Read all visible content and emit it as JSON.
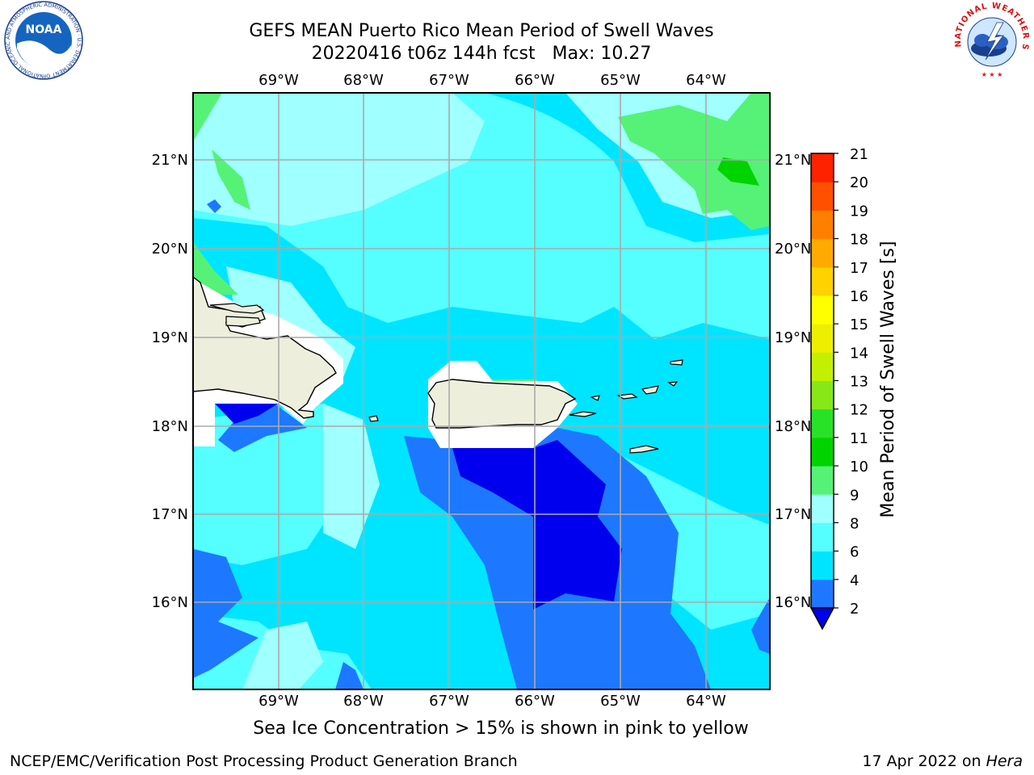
{
  "header": {
    "title_line1": "GEFS MEAN Puerto Rico Mean Period of Swell Waves",
    "title_line2": "20220416 t06z 144h fcst   Max: 10.27"
  },
  "logos": {
    "left": "NOAA",
    "left_ring": "NATIONAL OCEANIC AND ATMOSPHERIC ADMINISTRATION · U.S. DEPARTMENT OF COMMERCE",
    "right_ring": "NATIONAL WEATHER SERVICE"
  },
  "map": {
    "lon_labels": [
      "69°W",
      "68°W",
      "67°W",
      "66°W",
      "65°W",
      "64°W"
    ],
    "lat_labels": [
      "21°N",
      "20°N",
      "19°N",
      "18°N",
      "17°N",
      "16°N"
    ],
    "colors": {
      "land": "#eeeedd",
      "masked": "#ffffff",
      "grid": "#aaaaaa"
    }
  },
  "colorbar": {
    "label": "Mean Period of Swell Waves [s]",
    "ticks": [
      "2",
      "4",
      "6",
      "8",
      "9",
      "10",
      "11",
      "12",
      "13",
      "14",
      "15",
      "16",
      "17",
      "18",
      "19",
      "20",
      "21"
    ],
    "colors": [
      "#1e78ff",
      "#00e5ff",
      "#55ffff",
      "#a0ffff",
      "#55f277",
      "#00d400",
      "#28e228",
      "#87e818",
      "#c3f000",
      "#eeee00",
      "#ffff00",
      "#ffd200",
      "#ffaa00",
      "#ff8000",
      "#ff5000",
      "#ff2200",
      "#ff0000"
    ],
    "underflow_color": "#0000ee"
  },
  "caption": "Sea Ice Concentration > 15% is shown in pink to yellow",
  "footer": {
    "left": "NCEP/EMC/Verification Post Processing Product Generation Branch",
    "date": "17 Apr 2022 on",
    "host": "Hera"
  }
}
